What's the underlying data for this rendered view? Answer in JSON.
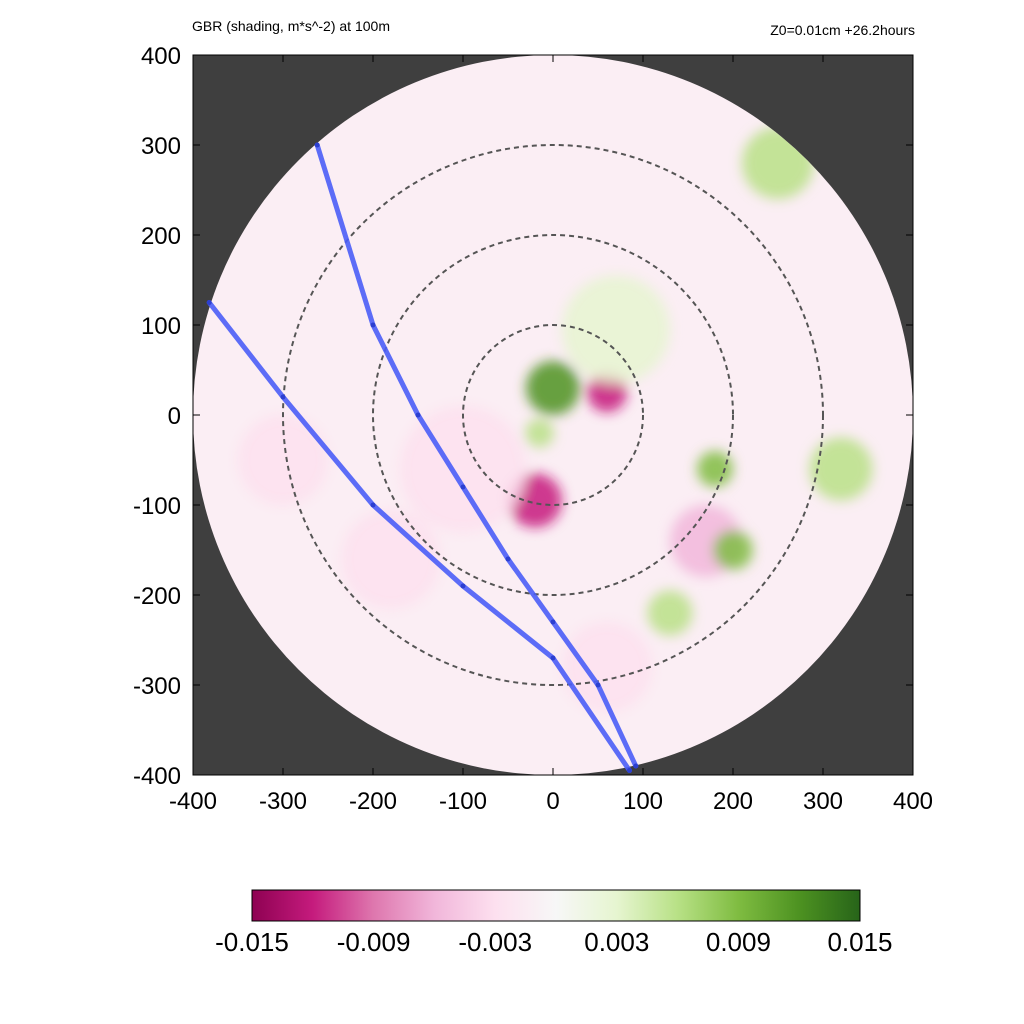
{
  "chart_data": {
    "type": "heatmap",
    "title": "GBR (shading, m*s^-2) at 100m",
    "subtitle": "Z0=0.01cm  +26.2hours",
    "xlim": [
      -400,
      400
    ],
    "ylim": [
      -400,
      400
    ],
    "x_ticks": [
      -400,
      -300,
      -200,
      -100,
      0,
      100,
      200,
      300,
      400
    ],
    "y_ticks": [
      -400,
      -300,
      -200,
      -100,
      0,
      100,
      200,
      300,
      400
    ],
    "domain_radius": 400,
    "range_rings": [
      100,
      200,
      300
    ],
    "colorbar": {
      "min": -0.015,
      "max": 0.015,
      "tick_labels": [
        "-0.015",
        "-0.009",
        "-0.003",
        "0.003",
        "0.009",
        "0.015"
      ],
      "tick_values": [
        -0.015,
        -0.009,
        -0.003,
        0.003,
        0.009,
        0.015
      ],
      "colors": [
        "#8e0152",
        "#c51b7d",
        "#de77ae",
        "#f1b6da",
        "#fde0ef",
        "#f7f7f7",
        "#e6f5d0",
        "#b8e186",
        "#7fbc41",
        "#4d9221",
        "#276419"
      ]
    },
    "features": [
      {
        "x": 0,
        "y": 30,
        "r": 30,
        "value": 0.012
      },
      {
        "x": -15,
        "y": -20,
        "r": 16,
        "value": 0.007
      },
      {
        "x": 60,
        "y": 25,
        "r": 22,
        "value": -0.011
      },
      {
        "x": -20,
        "y": -95,
        "r": 30,
        "value": -0.012
      },
      {
        "x": 70,
        "y": 95,
        "r": 60,
        "value": 0.004
      },
      {
        "x": 170,
        "y": -140,
        "r": 40,
        "value": -0.006
      },
      {
        "x": 200,
        "y": -150,
        "r": 22,
        "value": 0.009
      },
      {
        "x": -180,
        "y": -160,
        "r": 55,
        "value": -0.004
      },
      {
        "x": 320,
        "y": -60,
        "r": 35,
        "value": 0.007
      },
      {
        "x": 250,
        "y": 280,
        "r": 40,
        "value": 0.005
      },
      {
        "x": -100,
        "y": -60,
        "r": 70,
        "value": -0.003
      },
      {
        "x": 60,
        "y": -280,
        "r": 50,
        "value": -0.004
      },
      {
        "x": -300,
        "y": -50,
        "r": 50,
        "value": -0.004
      },
      {
        "x": 130,
        "y": -220,
        "r": 25,
        "value": 0.006
      },
      {
        "x": 180,
        "y": -60,
        "r": 20,
        "value": 0.008
      }
    ],
    "tracks": [
      {
        "color": "#4a5df7",
        "points": [
          [
            -262,
            300
          ],
          [
            -200,
            100
          ],
          [
            -150,
            0
          ],
          [
            -100,
            -80
          ],
          [
            -50,
            -160
          ],
          [
            0,
            -230
          ],
          [
            50,
            -300
          ],
          [
            92,
            -390
          ]
        ]
      },
      {
        "color": "#4a5df7",
        "points": [
          [
            -382,
            125
          ],
          [
            -300,
            20
          ],
          [
            -200,
            -100
          ],
          [
            -100,
            -190
          ],
          [
            0,
            -270
          ],
          [
            85,
            -395
          ]
        ]
      }
    ]
  }
}
